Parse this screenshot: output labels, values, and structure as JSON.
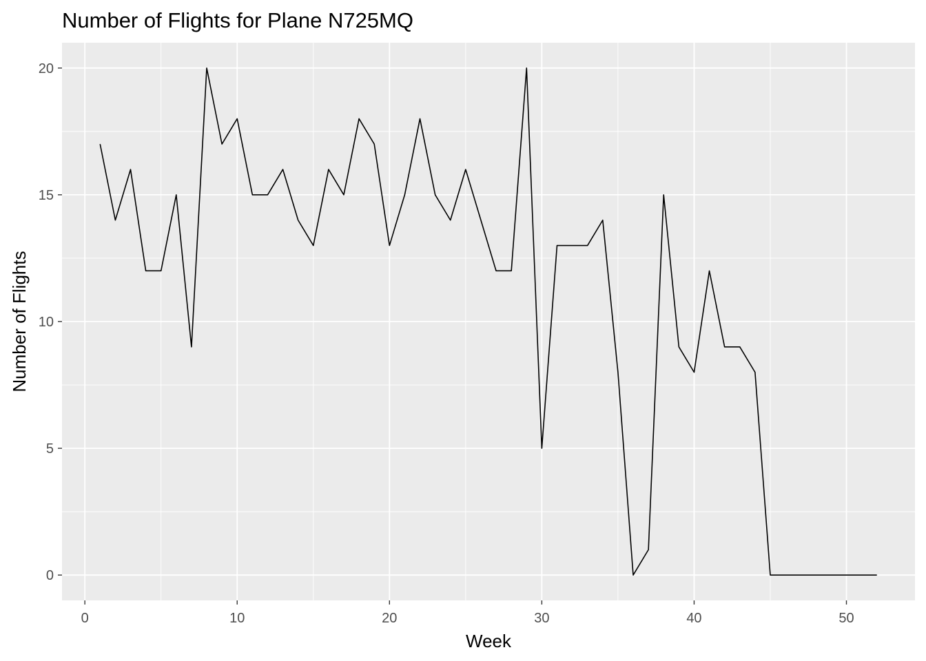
{
  "chart_data": {
    "type": "line",
    "title": "Number of Flights for Plane N725MQ",
    "xlabel": "Week",
    "ylabel": "Number of Flights",
    "xlim": [
      -1.5,
      54.5
    ],
    "ylim": [
      -1,
      21
    ],
    "x_ticks": [
      0,
      10,
      20,
      30,
      40,
      50
    ],
    "y_ticks": [
      0,
      5,
      10,
      15,
      20
    ],
    "grid": true,
    "legend": "none",
    "colors": {
      "panel": "#ebebeb",
      "grid": "#ffffff",
      "line": "#000000",
      "tick_text": "#4d4d4d"
    },
    "series": [
      {
        "x": [
          1,
          2,
          3,
          4,
          5,
          6,
          7,
          8,
          9,
          10,
          11,
          12,
          13,
          14,
          15,
          16,
          17,
          18,
          19,
          20,
          21,
          22,
          23,
          24,
          25,
          26,
          27,
          28,
          29,
          30,
          31,
          32,
          33,
          34,
          35,
          36,
          37,
          38,
          39,
          40,
          41,
          42,
          43,
          44,
          45,
          46,
          47,
          48,
          49,
          50,
          51,
          52
        ],
        "values": [
          17,
          14,
          16,
          12,
          12,
          15,
          9,
          20,
          17,
          18,
          15,
          15,
          16,
          14,
          13,
          16,
          15,
          18,
          17,
          13,
          15,
          18,
          15,
          14,
          16,
          14,
          12,
          12,
          20,
          5,
          13,
          13,
          13,
          14,
          8,
          0,
          1,
          15,
          9,
          8,
          12,
          9,
          9,
          8,
          0,
          0,
          0,
          0,
          0,
          0,
          0,
          0
        ]
      }
    ]
  }
}
